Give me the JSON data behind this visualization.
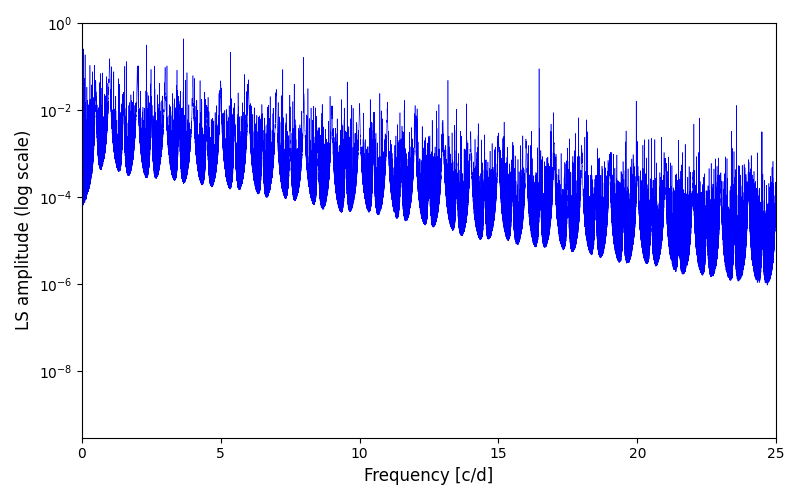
{
  "title": "",
  "xlabel": "Frequency [c/d]",
  "ylabel": "LS amplitude (log scale)",
  "xlim": [
    0,
    25
  ],
  "ylim": [
    3e-10,
    1
  ],
  "line_color": "#0000ff",
  "line_width": 0.4,
  "freq_max": 25.0,
  "n_points": 25000,
  "seed": 7,
  "background_color": "#ffffff",
  "figsize": [
    8.0,
    5.0
  ],
  "dpi": 100
}
